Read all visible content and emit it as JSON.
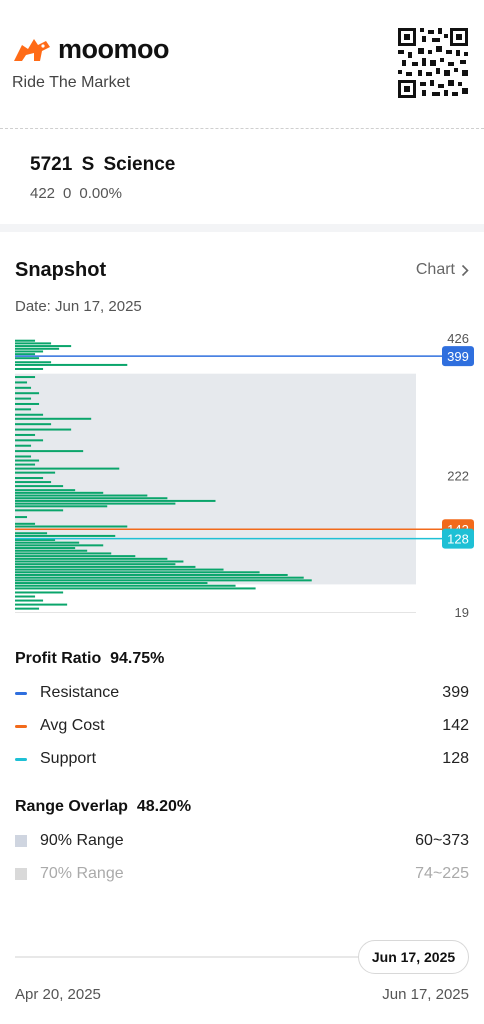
{
  "brand": {
    "name": "moomoo",
    "tagline": "Ride The Market"
  },
  "stock": {
    "code": "5721",
    "name": "S Science",
    "price": "422",
    "change": "0",
    "change_pct": "0.00%"
  },
  "snapshot": {
    "title": "Snapshot",
    "chart_link": "Chart",
    "date": "Date: Jun 17, 2025"
  },
  "chart_data": {
    "type": "bar",
    "orientation": "horizontal",
    "y_min": 19,
    "y_max": 426,
    "y_ticks": [
      "426",
      "222",
      "19"
    ],
    "lines": [
      {
        "name": "Resistance",
        "value": 399,
        "label": "399",
        "color": "#2f6fde"
      },
      {
        "name": "Avg Cost",
        "value": 142,
        "label": "142",
        "color": "#f26a1b"
      },
      {
        "name": "Support",
        "value": 128,
        "label": "128",
        "color": "#1ec0d5"
      }
    ],
    "range_90": [
      60,
      373
    ],
    "profit_color": "#0aa56b",
    "loss_color": "#e0325a",
    "profile": [
      {
        "price": 24,
        "width": 0.06
      },
      {
        "price": 30,
        "width": 0.13
      },
      {
        "price": 36,
        "width": 0.07
      },
      {
        "price": 42,
        "width": 0.05
      },
      {
        "price": 48,
        "width": 0.12
      },
      {
        "price": 54,
        "width": 0.6
      },
      {
        "price": 58,
        "width": 0.55
      },
      {
        "price": 62,
        "width": 0.48
      },
      {
        "price": 66,
        "width": 0.74
      },
      {
        "price": 70,
        "width": 0.72
      },
      {
        "price": 74,
        "width": 0.68
      },
      {
        "price": 78,
        "width": 0.61
      },
      {
        "price": 82,
        "width": 0.52
      },
      {
        "price": 86,
        "width": 0.45
      },
      {
        "price": 90,
        "width": 0.4
      },
      {
        "price": 94,
        "width": 0.42
      },
      {
        "price": 98,
        "width": 0.38
      },
      {
        "price": 102,
        "width": 0.3
      },
      {
        "price": 106,
        "width": 0.24
      },
      {
        "price": 110,
        "width": 0.18
      },
      {
        "price": 114,
        "width": 0.15
      },
      {
        "price": 118,
        "width": 0.22
      },
      {
        "price": 122,
        "width": 0.16
      },
      {
        "price": 126,
        "width": 0.1
      },
      {
        "price": 132,
        "width": 0.25
      },
      {
        "price": 136,
        "width": 0.08
      },
      {
        "price": 146,
        "width": 0.28
      },
      {
        "price": 150,
        "width": 0.05
      },
      {
        "price": 160,
        "width": 0.03
      },
      {
        "price": 170,
        "width": 0.12
      },
      {
        "price": 176,
        "width": 0.23
      },
      {
        "price": 180,
        "width": 0.4
      },
      {
        "price": 184,
        "width": 0.5
      },
      {
        "price": 188,
        "width": 0.38
      },
      {
        "price": 192,
        "width": 0.33
      },
      {
        "price": 196,
        "width": 0.22
      },
      {
        "price": 200,
        "width": 0.15
      },
      {
        "price": 206,
        "width": 0.12
      },
      {
        "price": 212,
        "width": 0.09
      },
      {
        "price": 218,
        "width": 0.07
      },
      {
        "price": 226,
        "width": 0.1
      },
      {
        "price": 232,
        "width": 0.26
      },
      {
        "price": 238,
        "width": 0.05
      },
      {
        "price": 244,
        "width": 0.06
      },
      {
        "price": 250,
        "width": 0.04
      },
      {
        "price": 258,
        "width": 0.17
      },
      {
        "price": 266,
        "width": 0.04
      },
      {
        "price": 274,
        "width": 0.07
      },
      {
        "price": 282,
        "width": 0.05
      },
      {
        "price": 290,
        "width": 0.14
      },
      {
        "price": 298,
        "width": 0.09
      },
      {
        "price": 306,
        "width": 0.19
      },
      {
        "price": 312,
        "width": 0.07
      },
      {
        "price": 320,
        "width": 0.04
      },
      {
        "price": 328,
        "width": 0.06
      },
      {
        "price": 336,
        "width": 0.04
      },
      {
        "price": 344,
        "width": 0.06
      },
      {
        "price": 352,
        "width": 0.04
      },
      {
        "price": 360,
        "width": 0.03
      },
      {
        "price": 368,
        "width": 0.05
      },
      {
        "price": 380,
        "width": 0.07
      },
      {
        "price": 386,
        "width": 0.28
      },
      {
        "price": 390,
        "width": 0.09
      },
      {
        "price": 396,
        "width": 0.06
      },
      {
        "price": 402,
        "width": 0.05
      },
      {
        "price": 406,
        "width": 0.07
      },
      {
        "price": 410,
        "width": 0.11
      },
      {
        "price": 414,
        "width": 0.14
      },
      {
        "price": 418,
        "width": 0.09
      },
      {
        "price": 422,
        "width": 0.05
      }
    ]
  },
  "profit": {
    "label": "Profit Ratio",
    "value": "94.75%"
  },
  "levels": [
    {
      "label": "Resistance",
      "value": "399",
      "color": "#2f6fde"
    },
    {
      "label": "Avg Cost",
      "value": "142",
      "color": "#f26a1b"
    },
    {
      "label": "Support",
      "value": "128",
      "color": "#1ec0d5"
    }
  ],
  "overlap": {
    "label": "Range Overlap",
    "value": "48.20%"
  },
  "ranges": [
    {
      "label": "90% Range",
      "value": "60~373",
      "color": "#cfd5e0"
    },
    {
      "label": "70% Range",
      "value": "74~225",
      "color": "#d9d9d9"
    }
  ],
  "timeline": {
    "current": "Jun 17, 2025",
    "start": "Apr 20, 2025",
    "end": "Jun 17, 2025"
  }
}
